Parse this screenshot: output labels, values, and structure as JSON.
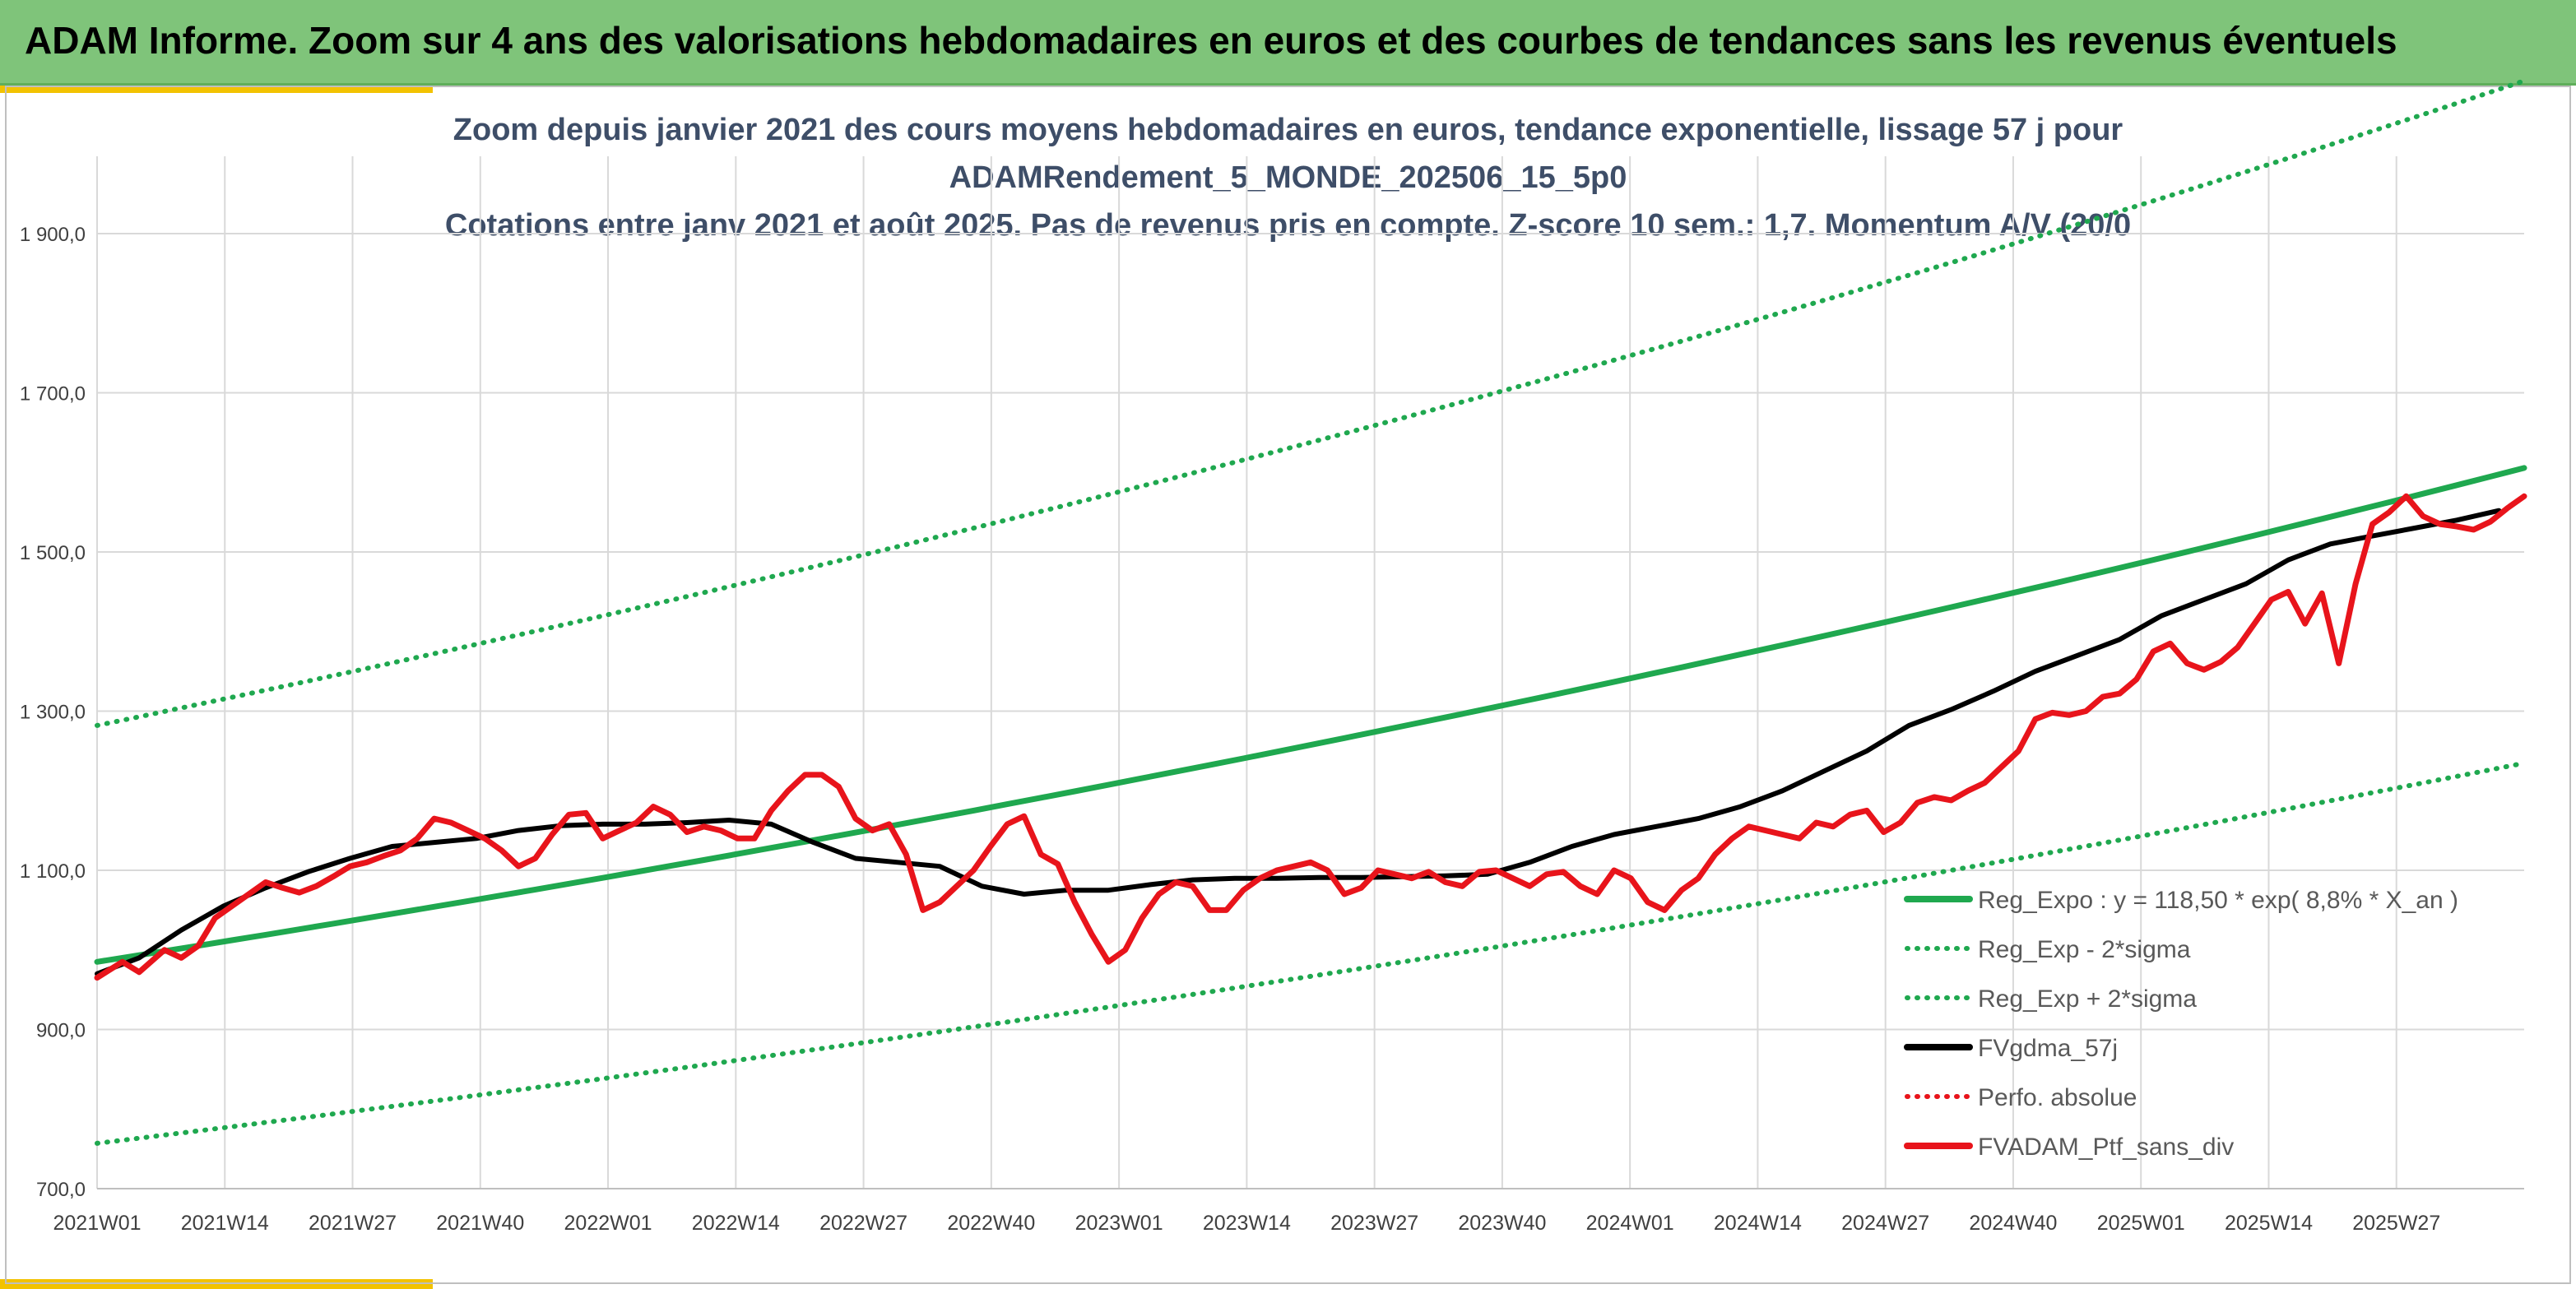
{
  "header": {
    "title": "ADAM Informe. Zoom sur 4 ans des valorisations hebdomadaires en euros et des courbes de tendances sans les revenus éventuels",
    "banner_color": "#7fc47a",
    "accent_color": "#f2c200"
  },
  "chart_data": {
    "type": "line",
    "title_lines": [
      "Zoom depuis janvier 2021 des cours moyens hebdomadaires en euros, tendance exponentielle, lissage 57 j pour",
      "ADAMRendement_5_MONDE_202506_15_5p0",
      "Cotations entre janv 2021 et août 2025. Pas de revenus pris en compte. Z-score 10 sem.: 1,7. Momentum A/V (20/0"
    ],
    "x_ticks": [
      "2021W01",
      "2021W14",
      "2021W27",
      "2021W40",
      "2022W01",
      "2022W14",
      "2022W27",
      "2022W40",
      "2023W01",
      "2023W14",
      "2023W27",
      "2023W40",
      "2024W01",
      "2024W14",
      "2024W27",
      "2024W40",
      "2025W01",
      "2025W14",
      "2025W27"
    ],
    "x_range_weeks": [
      0,
      240
    ],
    "y_ticks": [
      "700,0",
      "900,0",
      "1 100,0",
      "1 300,0",
      "1 500,0",
      "1 700,0",
      "1 900,0"
    ],
    "y_tick_values": [
      700,
      900,
      1100,
      1300,
      1500,
      1700,
      1900
    ],
    "ylim": [
      700,
      2000
    ],
    "grid": true,
    "legend_position": "bottom-right",
    "series": [
      {
        "name": "Reg_Expo : y = 118,50 * exp( 8,8% * X_an )",
        "color": "#1fa84f",
        "style": "solid",
        "points": [
          [
            0,
            985
          ],
          [
            240,
            1480
          ]
        ]
      },
      {
        "name": "Reg_Exp - 2*sigma",
        "color": "#1fa84f",
        "style": "dotted",
        "points": [
          [
            0,
            757
          ],
          [
            240,
            1138
          ]
        ]
      },
      {
        "name": "Reg_Exp + 2*sigma",
        "color": "#1fa84f",
        "style": "dotted",
        "points": [
          [
            0,
            1282
          ],
          [
            240,
            1928
          ]
        ]
      },
      {
        "name": "FVgdma_57j",
        "color": "#000000",
        "style": "solid",
        "points": [
          [
            0,
            970
          ],
          [
            5,
            990
          ],
          [
            10,
            1025
          ],
          [
            15,
            1055
          ],
          [
            20,
            1078
          ],
          [
            25,
            1098
          ],
          [
            30,
            1115
          ],
          [
            35,
            1130
          ],
          [
            40,
            1135
          ],
          [
            45,
            1140
          ],
          [
            50,
            1150
          ],
          [
            55,
            1156
          ],
          [
            60,
            1158
          ],
          [
            65,
            1158
          ],
          [
            70,
            1160
          ],
          [
            75,
            1163
          ],
          [
            80,
            1158
          ],
          [
            85,
            1135
          ],
          [
            90,
            1115
          ],
          [
            95,
            1110
          ],
          [
            100,
            1105
          ],
          [
            105,
            1080
          ],
          [
            110,
            1070
          ],
          [
            115,
            1075
          ],
          [
            120,
            1075
          ],
          [
            125,
            1082
          ],
          [
            130,
            1088
          ],
          [
            135,
            1090
          ],
          [
            140,
            1090
          ],
          [
            145,
            1091
          ],
          [
            150,
            1091
          ],
          [
            155,
            1092
          ],
          [
            160,
            1093
          ],
          [
            165,
            1095
          ],
          [
            170,
            1110
          ],
          [
            175,
            1130
          ],
          [
            180,
            1145
          ],
          [
            185,
            1155
          ],
          [
            190,
            1165
          ],
          [
            195,
            1180
          ],
          [
            200,
            1200
          ],
          [
            205,
            1225
          ],
          [
            210,
            1250
          ],
          [
            215,
            1282
          ],
          [
            220,
            1302
          ],
          [
            225,
            1325
          ],
          [
            230,
            1350
          ],
          [
            235,
            1370
          ],
          [
            240,
            1390
          ],
          [
            245,
            1420
          ],
          [
            250,
            1440
          ],
          [
            255,
            1460
          ],
          [
            260,
            1490
          ],
          [
            265,
            1510
          ],
          [
            270,
            1520
          ],
          [
            275,
            1530
          ],
          [
            280,
            1540
          ],
          [
            285,
            1552
          ]
        ]
      },
      {
        "name": "Perfo. absolue",
        "color": "#e8141b",
        "style": "dotted",
        "points": []
      },
      {
        "name": "FVADAM_Ptf_sans_div",
        "color": "#e8141b",
        "style": "solid",
        "points": [
          [
            0,
            965
          ],
          [
            3,
            985
          ],
          [
            5,
            972
          ],
          [
            8,
            1000
          ],
          [
            10,
            990
          ],
          [
            12,
            1005
          ],
          [
            14,
            1040
          ],
          [
            16,
            1055
          ],
          [
            18,
            1070
          ],
          [
            20,
            1085
          ],
          [
            22,
            1078
          ],
          [
            24,
            1072
          ],
          [
            26,
            1080
          ],
          [
            28,
            1092
          ],
          [
            30,
            1105
          ],
          [
            32,
            1110
          ],
          [
            34,
            1118
          ],
          [
            36,
            1125
          ],
          [
            38,
            1140
          ],
          [
            40,
            1165
          ],
          [
            42,
            1160
          ],
          [
            44,
            1150
          ],
          [
            46,
            1140
          ],
          [
            48,
            1125
          ],
          [
            50,
            1105
          ],
          [
            52,
            1115
          ],
          [
            54,
            1145
          ],
          [
            56,
            1170
          ],
          [
            58,
            1172
          ],
          [
            60,
            1140
          ],
          [
            62,
            1150
          ],
          [
            64,
            1160
          ],
          [
            66,
            1180
          ],
          [
            68,
            1170
          ],
          [
            70,
            1148
          ],
          [
            72,
            1155
          ],
          [
            74,
            1150
          ],
          [
            76,
            1140
          ],
          [
            78,
            1140
          ],
          [
            80,
            1175
          ],
          [
            82,
            1200
          ],
          [
            84,
            1220
          ],
          [
            86,
            1220
          ],
          [
            88,
            1205
          ],
          [
            90,
            1165
          ],
          [
            92,
            1150
          ],
          [
            94,
            1158
          ],
          [
            96,
            1120
          ],
          [
            98,
            1050
          ],
          [
            100,
            1060
          ],
          [
            102,
            1080
          ],
          [
            104,
            1100
          ],
          [
            106,
            1130
          ],
          [
            108,
            1158
          ],
          [
            110,
            1168
          ],
          [
            112,
            1120
          ],
          [
            114,
            1108
          ],
          [
            116,
            1060
          ],
          [
            118,
            1020
          ],
          [
            120,
            985
          ],
          [
            122,
            1000
          ],
          [
            124,
            1040
          ],
          [
            126,
            1070
          ],
          [
            128,
            1085
          ],
          [
            130,
            1080
          ],
          [
            132,
            1050
          ],
          [
            134,
            1050
          ],
          [
            136,
            1075
          ],
          [
            138,
            1090
          ],
          [
            140,
            1100
          ],
          [
            142,
            1105
          ],
          [
            144,
            1110
          ],
          [
            146,
            1100
          ],
          [
            148,
            1070
          ],
          [
            150,
            1078
          ],
          [
            152,
            1100
          ],
          [
            154,
            1095
          ],
          [
            156,
            1090
          ],
          [
            158,
            1098
          ],
          [
            160,
            1085
          ],
          [
            162,
            1080
          ],
          [
            164,
            1098
          ],
          [
            166,
            1100
          ],
          [
            168,
            1090
          ],
          [
            170,
            1080
          ],
          [
            172,
            1095
          ],
          [
            174,
            1098
          ],
          [
            176,
            1080
          ],
          [
            178,
            1070
          ],
          [
            180,
            1100
          ],
          [
            182,
            1090
          ],
          [
            184,
            1060
          ],
          [
            186,
            1050
          ],
          [
            188,
            1075
          ],
          [
            190,
            1090
          ],
          [
            192,
            1120
          ],
          [
            194,
            1140
          ],
          [
            196,
            1155
          ],
          [
            198,
            1150
          ],
          [
            200,
            1145
          ],
          [
            202,
            1140
          ],
          [
            204,
            1160
          ],
          [
            206,
            1155
          ],
          [
            208,
            1170
          ],
          [
            210,
            1175
          ],
          [
            212,
            1148
          ],
          [
            214,
            1160
          ],
          [
            216,
            1185
          ],
          [
            218,
            1192
          ],
          [
            220,
            1188
          ],
          [
            222,
            1200
          ],
          [
            224,
            1210
          ],
          [
            226,
            1230
          ],
          [
            228,
            1250
          ],
          [
            230,
            1290
          ],
          [
            232,
            1298
          ],
          [
            234,
            1295
          ],
          [
            236,
            1300
          ],
          [
            238,
            1318
          ],
          [
            240,
            1322
          ],
          [
            242,
            1340
          ],
          [
            244,
            1375
          ],
          [
            246,
            1385
          ],
          [
            248,
            1360
          ],
          [
            250,
            1352
          ],
          [
            252,
            1362
          ],
          [
            254,
            1380
          ],
          [
            256,
            1410
          ],
          [
            258,
            1440
          ],
          [
            260,
            1450
          ],
          [
            262,
            1410
          ],
          [
            264,
            1448
          ],
          [
            266,
            1360
          ],
          [
            268,
            1460
          ],
          [
            270,
            1535
          ],
          [
            272,
            1550
          ],
          [
            274,
            1570
          ],
          [
            276,
            1545
          ],
          [
            278,
            1535
          ],
          [
            280,
            1532
          ],
          [
            282,
            1528
          ],
          [
            284,
            1538
          ],
          [
            286,
            1555
          ],
          [
            288,
            1570
          ]
        ]
      }
    ]
  }
}
